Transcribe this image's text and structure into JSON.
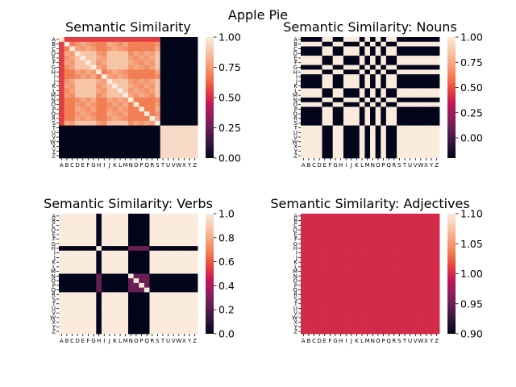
{
  "figure": {
    "suptitle": "Apple Pie"
  },
  "colors": {
    "rocket": [
      "#03051a",
      "#2d1539",
      "#5c1e51",
      "#8f1e5e",
      "#c11754",
      "#e43f3f",
      "#f27a4e",
      "#f5a37e",
      "#f6c8a9",
      "#faebdd"
    ],
    "background": "#ffffff"
  },
  "chart_data": [
    {
      "type": "heatmap",
      "title": "Semantic Similarity",
      "labels": [
        "A",
        "B",
        "C",
        "D",
        "E",
        "F",
        "G",
        "H",
        "I",
        "J",
        "K",
        "L",
        "M",
        "N",
        "O",
        "P",
        "Q",
        "R",
        "S",
        "T",
        "U",
        "V",
        "W",
        "X",
        "Y",
        "Z"
      ],
      "vmin": 0,
      "vmax": 1,
      "colorbar_ticks": [
        0.0,
        0.25,
        0.5,
        0.75,
        1.0
      ],
      "colorbar_tick_labels": [
        "0.00",
        "0.25",
        "0.50",
        "0.75",
        "1.00"
      ],
      "blocks": {
        "group_a": "A-S",
        "group_b": "T-Z",
        "within_a_base": 0.88,
        "within_a_stripes": [
          "B",
          "C",
          "H",
          "I",
          "N",
          "O",
          "P",
          "Q",
          "R"
        ],
        "stripe_value": 0.72,
        "first_row_value": 0.55,
        "within_b": 0.95,
        "between": 0.0
      }
    },
    {
      "type": "heatmap",
      "title": "Semantic Similarity: Nouns",
      "labels": [
        "A",
        "B",
        "C",
        "D",
        "E",
        "F",
        "G",
        "H",
        "I",
        "J",
        "K",
        "L",
        "M",
        "N",
        "O",
        "P",
        "Q",
        "R",
        "S",
        "T",
        "U",
        "V",
        "W",
        "X",
        "Y",
        "Z"
      ],
      "vmin": -0.2,
      "vmax": 1,
      "colorbar_ticks": [
        0.0,
        0.25,
        0.5,
        0.75,
        1.0
      ],
      "colorbar_tick_labels": [
        "0.00",
        "0.25",
        "0.50",
        "0.75",
        "1.00"
      ],
      "structure": {
        "noun_rows": [
          "A",
          "C",
          "D",
          "G",
          "I",
          "J",
          "K",
          "N",
          "P",
          "Q",
          "R",
          "S"
        ],
        "noun_cols": [
          "E",
          "F",
          "I",
          "J",
          "K",
          "M",
          "O",
          "Q",
          "R"
        ],
        "high": 1.0,
        "low": -0.2
      }
    },
    {
      "type": "heatmap",
      "title": "Semantic Similarity: Verbs",
      "labels": [
        "A",
        "B",
        "C",
        "D",
        "E",
        "F",
        "G",
        "H",
        "I",
        "J",
        "K",
        "L",
        "M",
        "N",
        "O",
        "P",
        "Q",
        "R",
        "S",
        "T",
        "U",
        "V",
        "W",
        "X",
        "Y",
        "Z"
      ],
      "vmin": 0,
      "vmax": 1,
      "colorbar_ticks": [
        0.0,
        0.2,
        0.4,
        0.6,
        0.8,
        1.0
      ],
      "colorbar_tick_labels": [
        "0.0",
        "0.2",
        "0.4",
        "0.6",
        "0.8",
        "1.0"
      ],
      "structure": {
        "verb_labels": [
          "H",
          "N",
          "O",
          "P",
          "Q"
        ],
        "default": 1.0,
        "verb_cross": 0.0,
        "verb_self": 1.0,
        "verb_verb": 0.25
      }
    },
    {
      "type": "heatmap",
      "title": "Semantic Similarity: Adjectives",
      "labels": [
        "A",
        "B",
        "C",
        "D",
        "E",
        "F",
        "G",
        "H",
        "I",
        "J",
        "K",
        "L",
        "M",
        "N",
        "O",
        "P",
        "Q",
        "R",
        "S",
        "T",
        "U",
        "V",
        "W",
        "X",
        "Y",
        "Z"
      ],
      "vmin": 0.9,
      "vmax": 1.1,
      "colorbar_ticks": [
        0.9,
        0.95,
        1.0,
        1.05,
        1.1
      ],
      "colorbar_tick_labels": [
        "0.90",
        "0.95",
        "1.00",
        "1.05",
        "1.10"
      ],
      "structure": {
        "all_values": 1.0
      }
    }
  ]
}
